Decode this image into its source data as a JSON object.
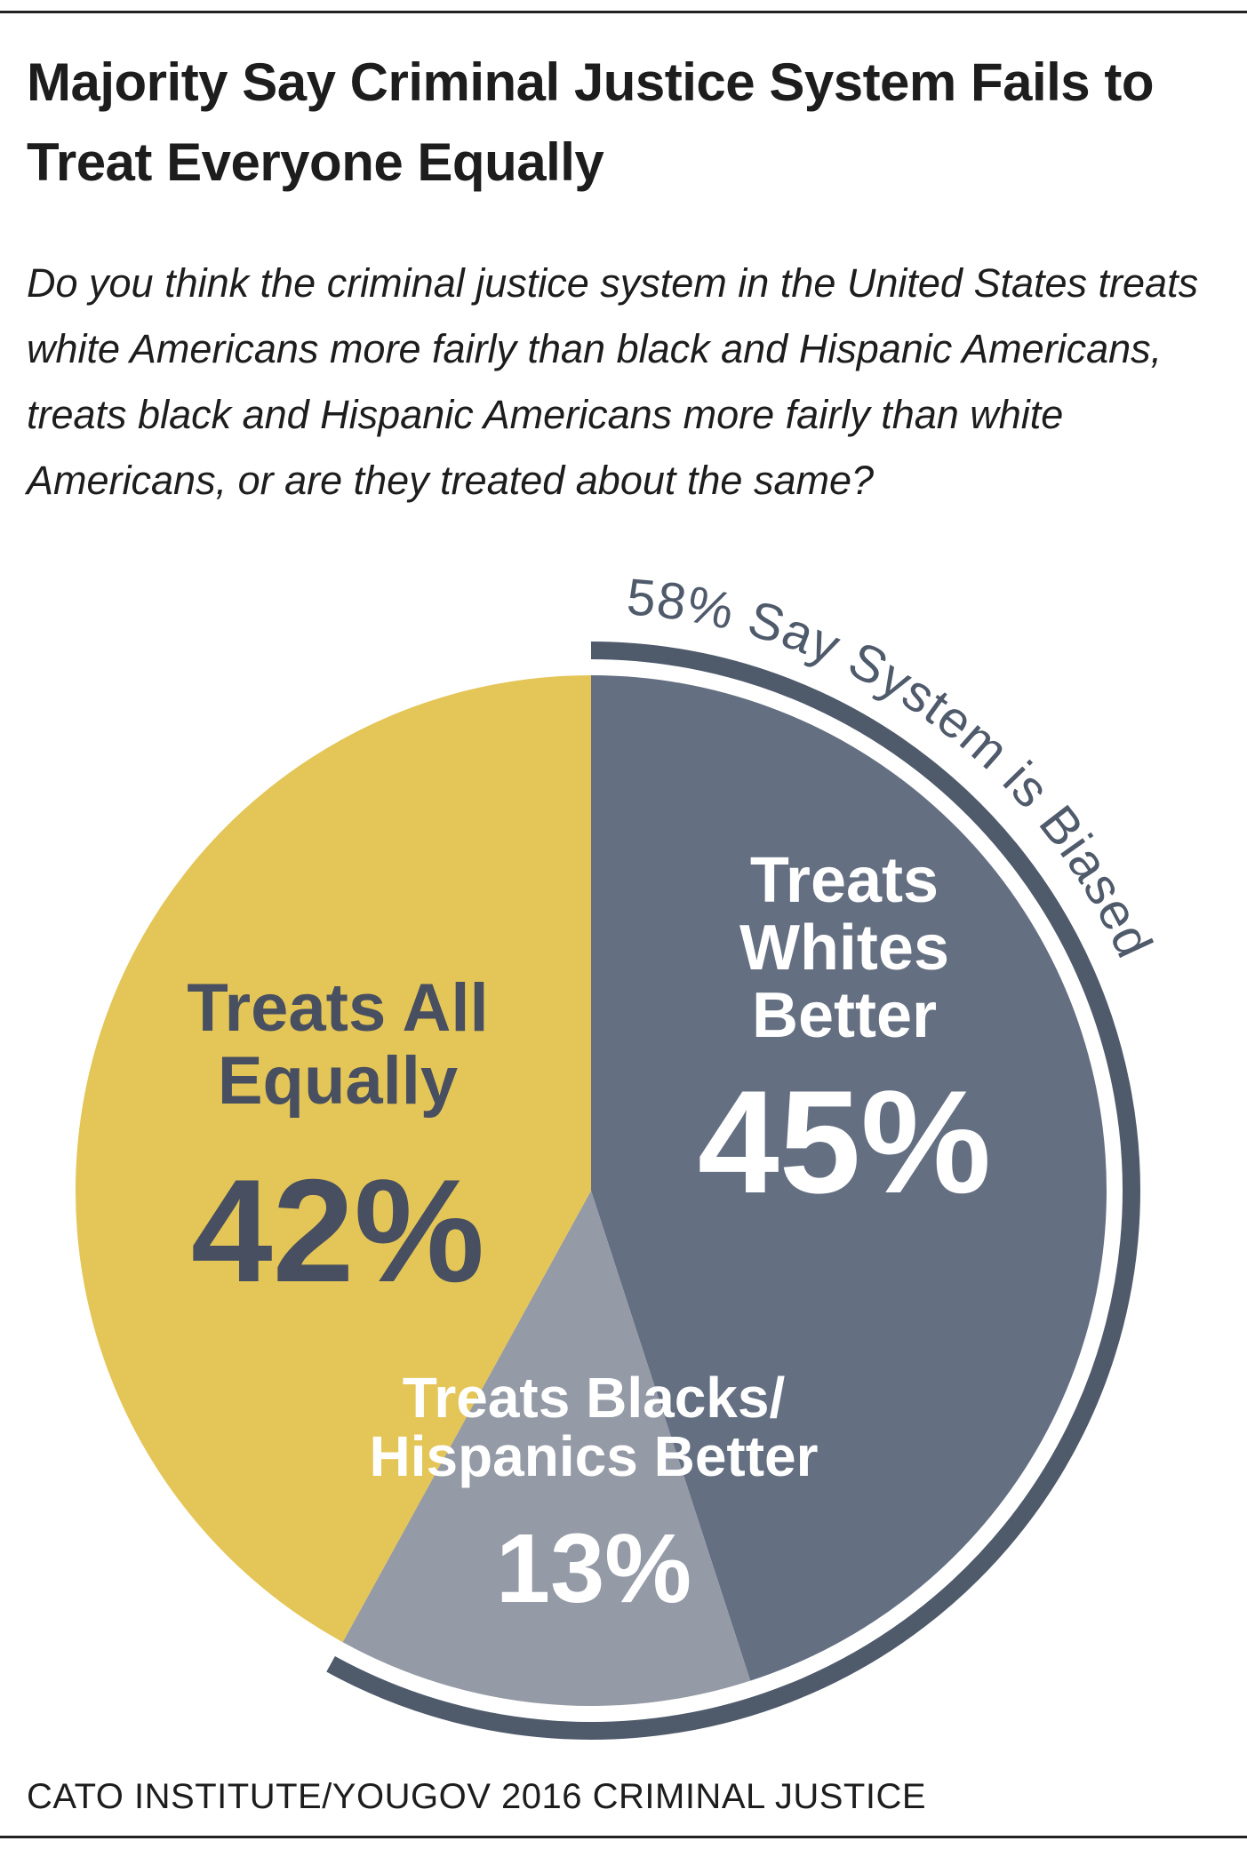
{
  "chart_data": {
    "type": "pie",
    "title": "Majority Say Criminal Justice System Fails to Treat Everyone Equally",
    "subtitle": "Do you think the criminal justice system in the United States treats white Americans more fairly than black and Hispanic Americans, treats black and Hispanic Americans more fairly than white Americans, or are they treated about the same?",
    "slices": [
      {
        "label_lines": [
          "Treats",
          "Whites",
          "Better"
        ],
        "value": 45,
        "value_label": "45%",
        "color": "#646f82",
        "text_color": "#ffffff"
      },
      {
        "label_lines": [
          "Treats Blacks/",
          "Hispanics Better"
        ],
        "value": 13,
        "value_label": "13%",
        "color": "#949aa6",
        "text_color": "#ffffff"
      },
      {
        "label_lines": [
          "Treats All",
          "Equally"
        ],
        "value": 42,
        "value_label": "42%",
        "color": "#e4c557",
        "text_color": "#474f60"
      }
    ],
    "annotation": {
      "text": "58% Say System is Biased",
      "value": 58,
      "color": "#4f5a6b"
    }
  },
  "source": "CATO INSTITUTE/YOUGOV 2016 CRIMINAL JUSTICE"
}
